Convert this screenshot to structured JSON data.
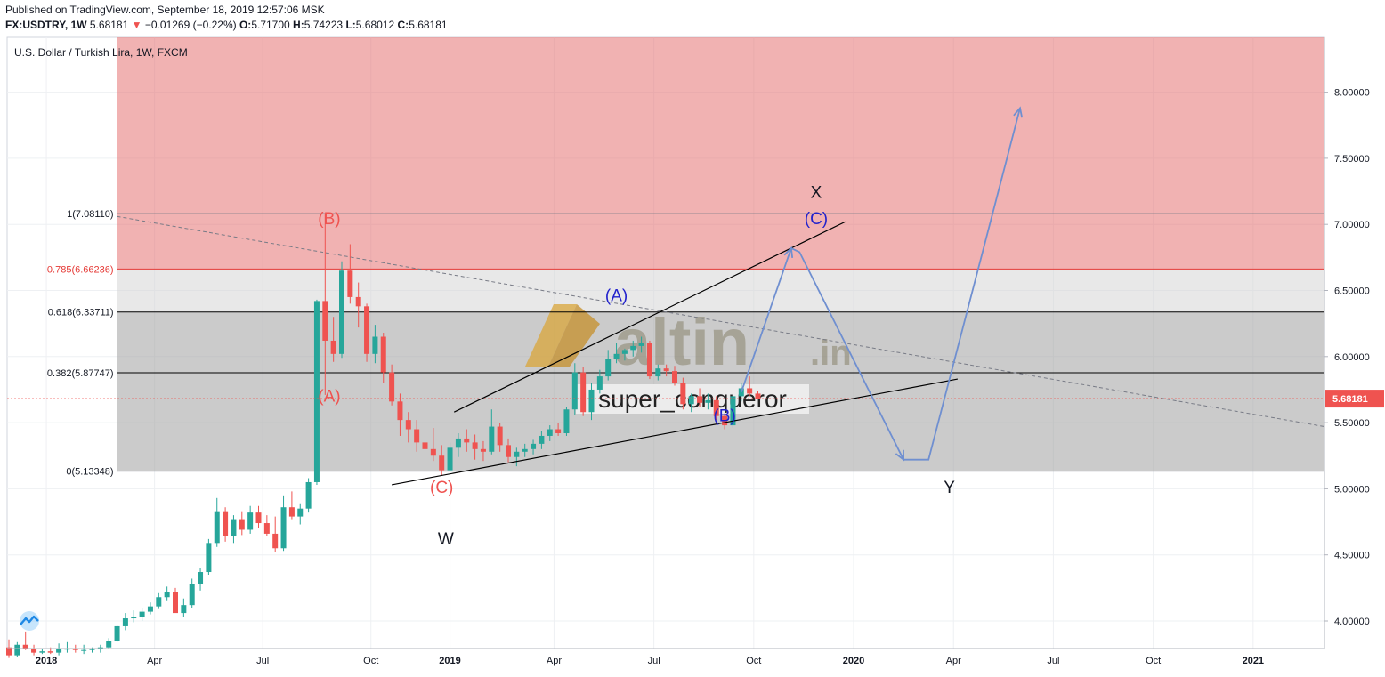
{
  "header": {
    "published": "Published on TradingView.com, September 18, 2019 12:57:06 MSK",
    "symbol": "FX:USDTRY, 1W",
    "last": "5.68181",
    "change": "−0.01269 (−0.22%)",
    "o_label": "O:",
    "o": "5.71700",
    "h_label": "H:",
    "h": "5.74223",
    "l_label": "L:",
    "l": "5.68012",
    "c_label": "C:",
    "c": "5.68181"
  },
  "legend": "U.S. Dollar / Turkish Lira, 1W, FXCM",
  "watermark": {
    "brand": "altin",
    "suffix": ".in",
    "author": "super_conqueror"
  },
  "colors": {
    "up": "#26a69a",
    "down": "#ef5350",
    "zone": "#e57373",
    "arrow": "#6f8fd0",
    "wave_red": "#ef5350",
    "wave_blue": "#2222cc"
  },
  "chart_data": {
    "type": "candlestick",
    "x_ticks": [
      "2018",
      "Apr",
      "Jul",
      "Oct",
      "2019",
      "Apr",
      "Jul",
      "Oct",
      "2020",
      "Apr",
      "Jul",
      "Oct",
      "2021"
    ],
    "y_ticks": [
      "4.00000",
      "4.50000",
      "5.00000",
      "5.50000",
      "6.00000",
      "6.50000",
      "7.00000",
      "7.50000",
      "8.00000"
    ],
    "ylim": [
      3.78,
      8.5
    ],
    "last_price": 5.68181,
    "last_price_label": "5.68181",
    "fib_levels": [
      {
        "label": "1(7.08110)",
        "value": 7.0811
      },
      {
        "label": "0.785(6.66236)",
        "value": 6.66236
      },
      {
        "label": "0.618(6.33711)",
        "value": 6.33711
      },
      {
        "label": "0.382(5.87747)",
        "value": 5.87747
      },
      {
        "label": "0(5.13348)",
        "value": 5.13348
      }
    ],
    "candles_ohlc": [
      [
        3.8,
        3.86,
        3.72,
        3.74
      ],
      [
        3.74,
        3.84,
        3.73,
        3.82
      ],
      [
        3.82,
        3.92,
        3.78,
        3.79
      ],
      [
        3.79,
        3.82,
        3.74,
        3.76
      ],
      [
        3.76,
        3.79,
        3.75,
        3.77
      ],
      [
        3.77,
        3.8,
        3.75,
        3.76
      ],
      [
        3.76,
        3.83,
        3.74,
        3.79
      ],
      [
        3.79,
        3.84,
        3.76,
        3.79
      ],
      [
        3.79,
        3.82,
        3.76,
        3.78
      ],
      [
        3.78,
        3.82,
        3.75,
        3.78
      ],
      [
        3.78,
        3.8,
        3.76,
        3.79
      ],
      [
        3.79,
        3.82,
        3.76,
        3.8
      ],
      [
        3.8,
        3.87,
        3.79,
        3.85
      ],
      [
        3.85,
        3.97,
        3.84,
        3.96
      ],
      [
        3.96,
        4.06,
        3.93,
        4.02
      ],
      [
        4.02,
        4.08,
        3.99,
        4.03
      ],
      [
        4.03,
        4.1,
        4.0,
        4.07
      ],
      [
        4.07,
        4.14,
        4.05,
        4.11
      ],
      [
        4.11,
        4.21,
        4.09,
        4.18
      ],
      [
        4.18,
        4.26,
        4.15,
        4.22
      ],
      [
        4.22,
        4.25,
        4.07,
        4.06
      ],
      [
        4.06,
        4.17,
        4.03,
        4.12
      ],
      [
        4.12,
        4.32,
        4.1,
        4.28
      ],
      [
        4.28,
        4.4,
        4.23,
        4.37
      ],
      [
        4.37,
        4.62,
        4.35,
        4.59
      ],
      [
        4.59,
        4.93,
        4.56,
        4.83
      ],
      [
        4.83,
        4.86,
        4.6,
        4.64
      ],
      [
        4.64,
        4.8,
        4.59,
        4.77
      ],
      [
        4.77,
        4.83,
        4.65,
        4.69
      ],
      [
        4.69,
        4.87,
        4.66,
        4.82
      ],
      [
        4.82,
        4.87,
        4.7,
        4.74
      ],
      [
        4.74,
        4.8,
        4.64,
        4.66
      ],
      [
        4.66,
        4.79,
        4.52,
        4.55
      ],
      [
        4.55,
        4.95,
        4.53,
        4.86
      ],
      [
        4.86,
        4.98,
        4.77,
        4.79
      ],
      [
        4.79,
        4.89,
        4.73,
        4.85
      ],
      [
        4.85,
        5.08,
        4.82,
        5.05
      ],
      [
        5.05,
        6.43,
        5.03,
        6.42
      ],
      [
        6.42,
        7.08,
        5.71,
        6.12
      ],
      [
        6.12,
        6.3,
        5.96,
        6.02
      ],
      [
        6.02,
        6.72,
        5.99,
        6.65
      ],
      [
        6.65,
        6.85,
        6.4,
        6.45
      ],
      [
        6.45,
        6.56,
        6.22,
        6.38
      ],
      [
        6.38,
        6.4,
        5.96,
        6.02
      ],
      [
        6.02,
        6.24,
        5.95,
        6.15
      ],
      [
        6.15,
        6.18,
        5.8,
        5.88
      ],
      [
        5.88,
        5.94,
        5.63,
        5.66
      ],
      [
        5.66,
        5.72,
        5.4,
        5.52
      ],
      [
        5.52,
        5.58,
        5.35,
        5.45
      ],
      [
        5.45,
        5.52,
        5.28,
        5.35
      ],
      [
        5.35,
        5.42,
        5.25,
        5.3
      ],
      [
        5.3,
        5.46,
        5.21,
        5.25
      ],
      [
        5.25,
        5.33,
        5.1,
        5.14
      ],
      [
        5.14,
        5.35,
        5.13,
        5.31
      ],
      [
        5.31,
        5.42,
        5.24,
        5.38
      ],
      [
        5.38,
        5.45,
        5.28,
        5.35
      ],
      [
        5.35,
        5.41,
        5.22,
        5.3
      ],
      [
        5.3,
        5.36,
        5.21,
        5.28
      ],
      [
        5.28,
        5.6,
        5.26,
        5.47
      ],
      [
        5.47,
        5.5,
        5.28,
        5.33
      ],
      [
        5.33,
        5.38,
        5.2,
        5.24
      ],
      [
        5.24,
        5.31,
        5.17,
        5.28
      ],
      [
        5.28,
        5.34,
        5.24,
        5.3
      ],
      [
        5.3,
        5.37,
        5.26,
        5.34
      ],
      [
        5.34,
        5.44,
        5.3,
        5.4
      ],
      [
        5.4,
        5.48,
        5.36,
        5.45
      ],
      [
        5.45,
        5.5,
        5.4,
        5.42
      ],
      [
        5.42,
        5.62,
        5.4,
        5.6
      ],
      [
        5.6,
        5.95,
        5.56,
        5.88
      ],
      [
        5.88,
        5.92,
        5.55,
        5.58
      ],
      [
        5.58,
        5.8,
        5.52,
        5.75
      ],
      [
        5.75,
        5.9,
        5.72,
        5.85
      ],
      [
        5.85,
        6.05,
        5.82,
        5.98
      ],
      [
        5.98,
        6.1,
        5.95,
        6.02
      ],
      [
        6.02,
        6.06,
        5.97,
        6.05
      ],
      [
        6.05,
        6.12,
        6.0,
        6.08
      ],
      [
        6.08,
        6.15,
        6.03,
        6.1
      ],
      [
        6.1,
        6.12,
        5.83,
        5.85
      ],
      [
        5.85,
        5.94,
        5.82,
        5.91
      ],
      [
        5.91,
        5.94,
        5.85,
        5.89
      ],
      [
        5.89,
        5.93,
        5.78,
        5.8
      ],
      [
        5.8,
        5.84,
        5.6,
        5.64
      ],
      [
        5.64,
        5.72,
        5.58,
        5.7
      ],
      [
        5.7,
        5.76,
        5.62,
        5.65
      ],
      [
        5.65,
        5.72,
        5.6,
        5.67
      ],
      [
        5.67,
        5.7,
        5.52,
        5.55
      ],
      [
        5.55,
        5.57,
        5.45,
        5.48
      ],
      [
        5.48,
        5.72,
        5.46,
        5.7
      ],
      [
        5.7,
        5.8,
        5.66,
        5.76
      ],
      [
        5.76,
        5.85,
        5.7,
        5.72
      ],
      [
        5.72,
        5.74,
        5.68,
        5.68181
      ]
    ],
    "wave_labels": [
      {
        "text": "(B)",
        "t": 38.5,
        "v": 7.0,
        "color": "red"
      },
      {
        "text": "(A)",
        "t": 38.5,
        "v": 5.66,
        "color": "red"
      },
      {
        "text": "(C)",
        "t": 52,
        "v": 4.97,
        "color": "red"
      },
      {
        "text": "W",
        "t": 52.5,
        "v": 4.58,
        "color": "black"
      },
      {
        "text": "(A)",
        "t": 73,
        "v": 6.42,
        "color": "blue"
      },
      {
        "text": "(B)",
        "t": 86,
        "v": 5.51,
        "color": "blue"
      },
      {
        "text": "(C)",
        "t": 97,
        "v": 7.0,
        "color": "blue"
      },
      {
        "text": "X",
        "t": 97,
        "v": 7.2,
        "color": "black"
      },
      {
        "text": "Y",
        "t": 113,
        "v": 4.97,
        "color": "black"
      }
    ]
  }
}
